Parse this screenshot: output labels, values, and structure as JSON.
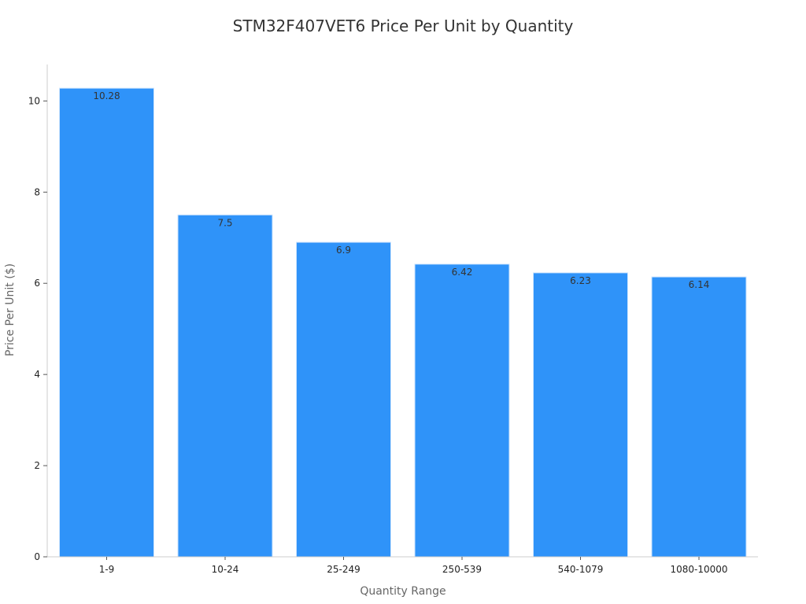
{
  "chart_data": {
    "type": "bar",
    "title": "STM32F407VET6 Price Per Unit by Quantity",
    "xlabel": "Quantity Range",
    "ylabel": "Price Per Unit ($)",
    "categories": [
      "1-9",
      "10-24",
      "25-249",
      "250-539",
      "540-1079",
      "1080-10000"
    ],
    "values": [
      10.28,
      7.5,
      6.9,
      6.42,
      6.23,
      6.14
    ],
    "value_labels": [
      "10.28",
      "7.5",
      "6.9",
      "6.42",
      "6.23",
      "6.14"
    ],
    "ylim": [
      0,
      10.8
    ],
    "yticks": [
      0,
      2,
      4,
      6,
      8,
      10
    ],
    "ytick_labels": [
      "0",
      "2",
      "4",
      "6",
      "8",
      "10"
    ],
    "grid": false,
    "legend": "none",
    "bar_color": "#2f93f9"
  }
}
